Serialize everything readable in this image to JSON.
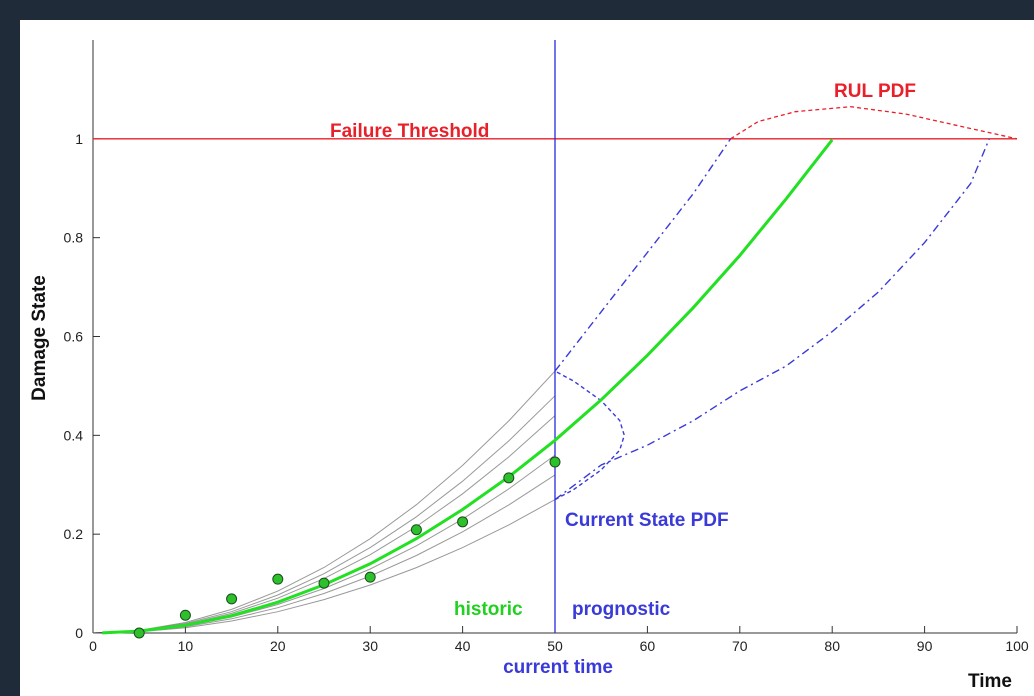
{
  "chart_data": {
    "type": "line",
    "ylabel": "Damage State",
    "xlabel": "Time",
    "xlim": [
      0,
      100
    ],
    "ylim": [
      0,
      1.2
    ],
    "xticks": [
      0,
      10,
      20,
      30,
      40,
      50,
      60,
      70,
      80,
      90,
      100
    ],
    "yticks": [
      0,
      0.2,
      0.4,
      0.6,
      0.8,
      1
    ],
    "threshold": {
      "label": "Failure Threshold",
      "value": 1,
      "color": "#e8202a"
    },
    "current_time": {
      "label": "current time",
      "value": 50,
      "color": "#2a2ae0"
    },
    "historic_label": "historic",
    "prognostic_label": "prognostic",
    "observations": {
      "color": "#2cc12c",
      "x": [
        5,
        10,
        15,
        20,
        25,
        30,
        35,
        40,
        45,
        50
      ],
      "values": [
        0,
        0.036,
        0.069,
        0.109,
        0.101,
        0.113,
        0.209,
        0.225,
        0.314,
        0.346
      ]
    },
    "fan_x": [
      0,
      5,
      10,
      15,
      20,
      25,
      30,
      35,
      40,
      45,
      50
    ],
    "fan_color": "#555555",
    "fan_curves": [
      {
        "values": [
          0,
          0.0027,
          0.0108,
          0.0243,
          0.0432,
          0.0675,
          0.0972,
          0.1323,
          0.1728,
          0.2187,
          0.27
        ]
      },
      {
        "values": [
          0,
          0.0032,
          0.0128,
          0.0288,
          0.0512,
          0.08,
          0.1152,
          0.1568,
          0.2048,
          0.2592,
          0.32
        ]
      },
      {
        "values": [
          0,
          0.0036,
          0.0144,
          0.0324,
          0.0576,
          0.09,
          0.1296,
          0.1764,
          0.2304,
          0.2916,
          0.36
        ]
      },
      {
        "values": [
          0,
          0.0044,
          0.0176,
          0.0396,
          0.0704,
          0.11,
          0.1584,
          0.2156,
          0.2816,
          0.3564,
          0.44
        ]
      },
      {
        "values": [
          0,
          0.0048,
          0.0192,
          0.0432,
          0.0768,
          0.12,
          0.1728,
          0.2352,
          0.3072,
          0.3888,
          0.48
        ]
      },
      {
        "values": [
          0,
          0.0053,
          0.0212,
          0.0477,
          0.0848,
          0.1325,
          0.1908,
          0.2597,
          0.3392,
          0.4293,
          0.53
        ]
      }
    ],
    "estimate": {
      "color": "#22e022",
      "x": [
        1,
        5,
        10,
        15,
        20,
        25,
        30,
        35,
        40,
        45,
        50,
        55,
        60,
        65,
        70,
        75,
        80
      ],
      "values": [
        0.0002,
        0.0039,
        0.0156,
        0.035,
        0.0624,
        0.0975,
        0.14,
        0.191,
        0.25,
        0.316,
        0.39,
        0.472,
        0.562,
        0.659,
        0.764,
        0.878,
        0.998
      ]
    },
    "upper_bound": {
      "color": "#3a3ad8",
      "x": [
        50,
        55,
        60,
        65,
        69
      ],
      "values": [
        0.53,
        0.65,
        0.77,
        0.89,
        1.0
      ]
    },
    "lower_bound": {
      "color": "#3a3ad8",
      "x": [
        50,
        55,
        60,
        65,
        70,
        75,
        80,
        85,
        90,
        95,
        97
      ],
      "values": [
        0.27,
        0.34,
        0.38,
        0.43,
        0.49,
        0.54,
        0.61,
        0.69,
        0.79,
        0.91,
        1.0
      ]
    },
    "state_pdf": {
      "label": "Current State PDF",
      "color": "#3a3ad8",
      "x": [
        50,
        52,
        55,
        57,
        57.5,
        57,
        55,
        52,
        50
      ],
      "values": [
        0.27,
        0.29,
        0.33,
        0.37,
        0.4,
        0.43,
        0.47,
        0.51,
        0.53
      ]
    },
    "rul_pdf": {
      "label": "RUL PDF",
      "color": "#e8202a",
      "x": [
        69,
        72,
        76,
        82,
        88,
        94,
        100
      ],
      "values": [
        1.0,
        1.035,
        1.055,
        1.065,
        1.05,
        1.025,
        1.0
      ]
    }
  }
}
